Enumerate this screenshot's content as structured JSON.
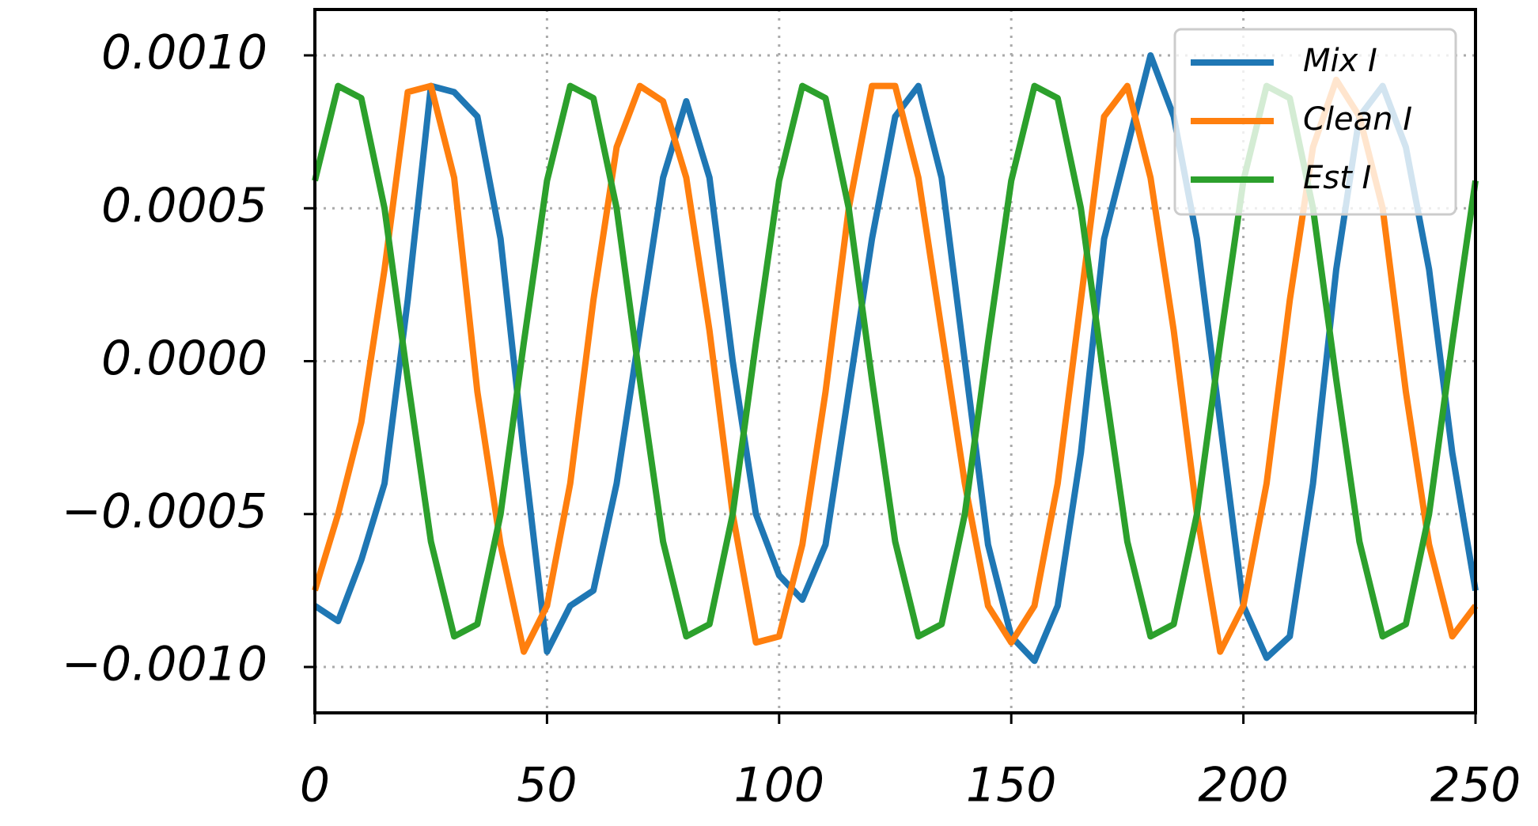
{
  "chart_data": {
    "type": "line",
    "x": [
      0,
      5,
      10,
      15,
      20,
      25,
      30,
      35,
      40,
      45,
      50,
      55,
      60,
      65,
      70,
      75,
      80,
      85,
      90,
      95,
      100,
      105,
      110,
      115,
      120,
      125,
      130,
      135,
      140,
      145,
      150,
      155,
      160,
      165,
      170,
      175,
      180,
      185,
      190,
      195,
      200,
      205,
      210,
      215,
      220,
      225,
      230,
      235,
      240,
      245,
      250
    ],
    "series": [
      {
        "name": "Mix I",
        "color": "#1f77b4",
        "values": [
          -0.0008,
          -0.00085,
          -0.00065,
          -0.0004,
          0.0002,
          0.0009,
          0.00088,
          0.0008,
          0.0004,
          -0.0003,
          -0.00095,
          -0.0008,
          -0.00075,
          -0.0004,
          0.0001,
          0.0006,
          0.00085,
          0.0006,
          0.0,
          -0.0005,
          -0.0007,
          -0.00078,
          -0.0006,
          -0.0001,
          0.0004,
          0.0008,
          0.0009,
          0.0006,
          0.0,
          -0.0006,
          -0.0009,
          -0.00098,
          -0.0008,
          -0.0003,
          0.0004,
          0.0007,
          0.001,
          0.0008,
          0.0004,
          -0.0002,
          -0.0008,
          -0.00097,
          -0.0009,
          -0.0004,
          0.0003,
          0.0008,
          0.0009,
          0.0007,
          0.0003,
          -0.0003,
          -0.00075
        ]
      },
      {
        "name": "Clean I",
        "color": "#ff7f0e",
        "values": [
          -0.00075,
          -0.0005,
          -0.0002,
          0.0003,
          0.00088,
          0.0009,
          0.0006,
          -0.0001,
          -0.0006,
          -0.00095,
          -0.0008,
          -0.0004,
          0.0002,
          0.0007,
          0.0009,
          0.00085,
          0.0006,
          0.0001,
          -0.0005,
          -0.00092,
          -0.0009,
          -0.0006,
          -0.0001,
          0.0005,
          0.0009,
          0.0009,
          0.0006,
          0.0001,
          -0.0004,
          -0.0008,
          -0.00092,
          -0.0008,
          -0.0004,
          0.0002,
          0.0008,
          0.0009,
          0.0006,
          0.0001,
          -0.0005,
          -0.00095,
          -0.0008,
          -0.0004,
          0.0002,
          0.0007,
          0.00092,
          0.0008,
          0.0005,
          -0.0001,
          -0.0006,
          -0.0009,
          -0.0008
        ]
      },
      {
        "name": "Est I",
        "color": "#2ca02c",
        "values": [
          0.00059,
          0.0009,
          0.00086,
          0.0005,
          -6e-05,
          -0.00059,
          -0.0009,
          -0.00086,
          -0.0005,
          6e-05,
          0.00059,
          0.0009,
          0.00086,
          0.0005,
          -6e-05,
          -0.00059,
          -0.0009,
          -0.00086,
          -0.0005,
          6e-05,
          0.00059,
          0.0009,
          0.00086,
          0.0005,
          -6e-05,
          -0.00059,
          -0.0009,
          -0.00086,
          -0.0005,
          6e-05,
          0.00059,
          0.0009,
          0.00086,
          0.0005,
          -6e-05,
          -0.00059,
          -0.0009,
          -0.00086,
          -0.0005,
          6e-05,
          0.00059,
          0.0009,
          0.00086,
          0.0005,
          -6e-05,
          -0.00059,
          -0.0009,
          -0.00086,
          -0.0005,
          6e-05,
          0.00059
        ]
      }
    ],
    "xlim": [
      0,
      250
    ],
    "xticks": [
      0,
      50,
      100,
      150,
      200,
      250
    ],
    "ylim": [
      -0.00115,
      0.00115
    ],
    "yticks": [
      {
        "value": -0.001,
        "label": "−0.0010"
      },
      {
        "value": -0.0005,
        "label": "−0.0005"
      },
      {
        "value": 0,
        "label": "0.0000"
      },
      {
        "value": 0.0005,
        "label": "0.0005"
      },
      {
        "value": 0.001,
        "label": "0.0010"
      }
    ],
    "grid": true,
    "legend": "upper right"
  }
}
